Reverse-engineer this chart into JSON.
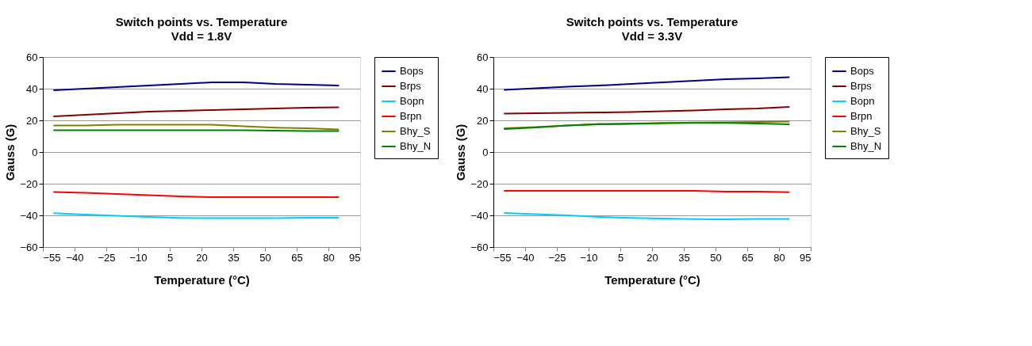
{
  "chart_data": [
    {
      "type": "line",
      "title": "Switch points  vs. Temperature",
      "subtitle": "Vdd = 1.8V",
      "xlabel": "Temperature (°C)",
      "ylabel": "Gauss (G)",
      "x": [
        -50,
        -35,
        -20,
        -5,
        10,
        25,
        40,
        55,
        70,
        85
      ],
      "xlim": [
        -55,
        95
      ],
      "xticks": [
        -55,
        -40,
        -25,
        -10,
        5,
        20,
        35,
        50,
        65,
        80,
        95
      ],
      "ylim": [
        -60,
        60
      ],
      "yticks": [
        -60,
        -40,
        -20,
        0,
        20,
        40,
        60
      ],
      "grid": "y",
      "legend": "right",
      "marker": "none",
      "line_style": "solid",
      "series": [
        {
          "name": "Bops",
          "color": "#000080",
          "values": [
            39,
            40,
            41,
            42,
            43,
            44,
            44,
            43,
            42.5,
            42
          ]
        },
        {
          "name": "Brps",
          "color": "#800000",
          "values": [
            22.5,
            23.5,
            24.5,
            25.5,
            26,
            26.5,
            27,
            27.5,
            28,
            28.3
          ]
        },
        {
          "name": "Bopn",
          "color": "#00ccff",
          "values": [
            -38.6,
            -39.5,
            -40.3,
            -41,
            -41.6,
            -41.8,
            -41.8,
            -41.8,
            -41.5,
            -41.5
          ]
        },
        {
          "name": "Brpn",
          "color": "#ff0000",
          "values": [
            -25.2,
            -25.8,
            -26.5,
            -27.3,
            -28,
            -28.5,
            -28.5,
            -28.5,
            -28.5,
            -28.5
          ]
        },
        {
          "name": "Bhy_S",
          "color": "#808000",
          "values": [
            16.7,
            16.7,
            17.2,
            17.3,
            17.3,
            17.3,
            16.2,
            15.4,
            15,
            14.3
          ]
        },
        {
          "name": "Bhy_N",
          "color": "#008000",
          "values": [
            13.7,
            13.7,
            13.7,
            13.7,
            13.7,
            13.7,
            13.7,
            13.5,
            13.3,
            13.3
          ]
        }
      ]
    },
    {
      "type": "line",
      "title": "Switch points  vs. Temperature",
      "subtitle": "Vdd = 3.3V",
      "xlabel": "Temperature (°C)",
      "ylabel": "Gauss (G)",
      "x": [
        -50,
        -35,
        -20,
        -5,
        10,
        25,
        40,
        55,
        70,
        85
      ],
      "xlim": [
        -55,
        95
      ],
      "xticks": [
        -55,
        -40,
        -25,
        -10,
        5,
        20,
        35,
        50,
        65,
        80,
        95
      ],
      "ylim": [
        -60,
        60
      ],
      "yticks": [
        -60,
        -40,
        -20,
        0,
        20,
        40,
        60
      ],
      "grid": "y",
      "legend": "right",
      "marker": "none",
      "line_style": "solid",
      "series": [
        {
          "name": "Bops",
          "color": "#000080",
          "values": [
            39.2,
            40.3,
            41.2,
            42,
            43,
            44,
            45,
            46,
            46.5,
            47.3
          ]
        },
        {
          "name": "Brps",
          "color": "#800000",
          "values": [
            24.2,
            24.5,
            24.7,
            25,
            25.2,
            25.7,
            26.2,
            27,
            27.5,
            28.5
          ]
        },
        {
          "name": "Bopn",
          "color": "#00ccff",
          "values": [
            -38.5,
            -39.2,
            -40,
            -41,
            -41.6,
            -42,
            -42.4,
            -42.5,
            -42.2,
            -42.2
          ]
        },
        {
          "name": "Brpn",
          "color": "#ff0000",
          "values": [
            -24.5,
            -24.5,
            -24.5,
            -24.5,
            -24.5,
            -24.5,
            -24.5,
            -25,
            -25,
            -25.4
          ]
        },
        {
          "name": "Bhy_S",
          "color": "#808000",
          "values": [
            15,
            15.8,
            16.8,
            17.7,
            18,
            18.3,
            18.6,
            18.8,
            19,
            19.3
          ]
        },
        {
          "name": "Bhy_N",
          "color": "#008000",
          "values": [
            14.5,
            15.5,
            16.7,
            17.5,
            17.8,
            18.2,
            18.4,
            18.4,
            18,
            17.5
          ]
        }
      ]
    }
  ]
}
